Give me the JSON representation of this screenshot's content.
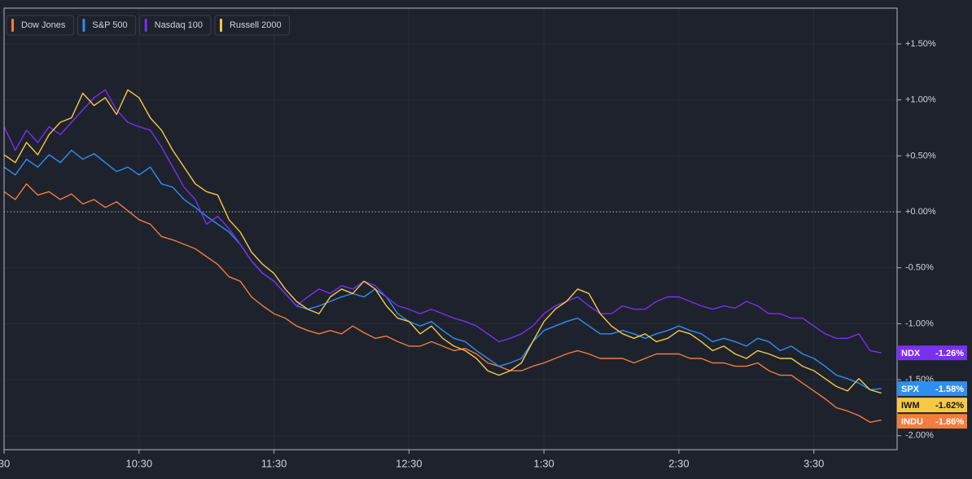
{
  "chart_data": {
    "type": "line",
    "x": [
      "9:30",
      "9:35",
      "9:40",
      "9:45",
      "9:50",
      "9:55",
      "10:00",
      "10:05",
      "10:10",
      "10:15",
      "10:20",
      "10:25",
      "10:30",
      "10:35",
      "10:40",
      "10:45",
      "10:50",
      "10:55",
      "11:00",
      "11:05",
      "11:10",
      "11:15",
      "11:20",
      "11:25",
      "11:30",
      "11:35",
      "11:40",
      "11:45",
      "11:50",
      "11:55",
      "12:00",
      "12:05",
      "12:10",
      "12:15",
      "12:20",
      "12:25",
      "12:30",
      "12:35",
      "12:40",
      "12:45",
      "12:50",
      "12:55",
      "1:00",
      "1:05",
      "1:10",
      "1:15",
      "1:20",
      "1:25",
      "1:30",
      "1:35",
      "1:40",
      "1:45",
      "1:50",
      "1:55",
      "2:00",
      "2:05",
      "2:10",
      "2:15",
      "2:20",
      "2:25",
      "2:30",
      "2:35",
      "2:40",
      "2:45",
      "2:50",
      "2:55",
      "3:00",
      "3:05",
      "3:10",
      "3:15",
      "3:20",
      "3:25",
      "3:30",
      "3:35",
      "3:40",
      "3:45",
      "3:50",
      "3:55",
      "4:00"
    ],
    "xlim": [
      "9:30",
      "4:07"
    ],
    "xticks": [
      {
        "value": "9:30",
        "label": "30"
      },
      "10:30",
      "11:30",
      "12:30",
      "1:30",
      "2:30",
      "3:30"
    ],
    "ylim": [
      -2.125,
      1.82
    ],
    "yticks": [
      {
        "value": 1.5,
        "label": "+1.50%"
      },
      {
        "value": 1.0,
        "label": "+1.00%"
      },
      {
        "value": 0.5,
        "label": "+0.50%"
      },
      {
        "value": 0,
        "label": "+0.00%"
      },
      {
        "value": -0.5,
        "label": "-0.50%"
      },
      {
        "value": -1.0,
        "label": "-1.00%"
      },
      {
        "value": -1.5,
        "label": "-1.50%"
      },
      {
        "value": -2.0,
        "label": "-2.00%"
      }
    ],
    "grid": true,
    "reference_line": 0,
    "legend": "top-left",
    "series": [
      {
        "name": "Dow Jones",
        "symbol": "INDU",
        "last_label": "-1.86%",
        "color": "#f47c3c",
        "values": [
          0.18,
          0.11,
          0.25,
          0.15,
          0.18,
          0.11,
          0.16,
          0.07,
          0.11,
          0.04,
          0.09,
          0.01,
          -0.07,
          -0.11,
          -0.22,
          -0.25,
          -0.29,
          -0.33,
          -0.4,
          -0.47,
          -0.58,
          -0.62,
          -0.76,
          -0.84,
          -0.91,
          -0.95,
          -1.02,
          -1.06,
          -1.09,
          -1.06,
          -1.09,
          -1.02,
          -1.08,
          -1.13,
          -1.11,
          -1.16,
          -1.2,
          -1.2,
          -1.16,
          -1.2,
          -1.24,
          -1.22,
          -1.27,
          -1.35,
          -1.38,
          -1.42,
          -1.42,
          -1.38,
          -1.35,
          -1.31,
          -1.27,
          -1.24,
          -1.27,
          -1.31,
          -1.31,
          -1.31,
          -1.35,
          -1.31,
          -1.27,
          -1.27,
          -1.27,
          -1.31,
          -1.31,
          -1.35,
          -1.35,
          -1.38,
          -1.38,
          -1.35,
          -1.42,
          -1.46,
          -1.46,
          -1.53,
          -1.6,
          -1.67,
          -1.75,
          -1.78,
          -1.82,
          -1.88,
          -1.86
        ]
      },
      {
        "name": "S&P 500",
        "symbol": "SPX",
        "last_label": "-1.58%",
        "color": "#2e8ff0",
        "values": [
          0.4,
          0.33,
          0.47,
          0.4,
          0.51,
          0.44,
          0.55,
          0.47,
          0.52,
          0.44,
          0.36,
          0.4,
          0.33,
          0.4,
          0.25,
          0.22,
          0.11,
          0.04,
          -0.04,
          -0.11,
          -0.18,
          -0.29,
          -0.44,
          -0.55,
          -0.62,
          -0.73,
          -0.84,
          -0.87,
          -0.84,
          -0.8,
          -0.76,
          -0.73,
          -0.76,
          -0.69,
          -0.76,
          -0.91,
          -0.98,
          -1.02,
          -0.98,
          -1.06,
          -1.13,
          -1.16,
          -1.24,
          -1.31,
          -1.38,
          -1.35,
          -1.31,
          -1.16,
          -1.06,
          -1.02,
          -0.98,
          -0.95,
          -1.02,
          -1.09,
          -1.09,
          -1.06,
          -1.09,
          -1.13,
          -1.09,
          -1.06,
          -1.02,
          -1.06,
          -1.09,
          -1.16,
          -1.13,
          -1.16,
          -1.2,
          -1.13,
          -1.16,
          -1.24,
          -1.2,
          -1.27,
          -1.31,
          -1.38,
          -1.46,
          -1.49,
          -1.53,
          -1.59,
          -1.58
        ]
      },
      {
        "name": "Nasdaq 100",
        "symbol": "NDX",
        "last_label": "-1.26%",
        "color": "#7b2ff0",
        "values": [
          0.76,
          0.55,
          0.73,
          0.62,
          0.76,
          0.69,
          0.8,
          0.91,
          1.02,
          1.09,
          0.91,
          0.8,
          0.76,
          0.73,
          0.58,
          0.4,
          0.22,
          0.11,
          -0.11,
          -0.04,
          -0.15,
          -0.29,
          -0.44,
          -0.55,
          -0.62,
          -0.73,
          -0.84,
          -0.76,
          -0.69,
          -0.73,
          -0.66,
          -0.69,
          -0.62,
          -0.66,
          -0.76,
          -0.84,
          -0.87,
          -0.91,
          -0.87,
          -0.91,
          -0.95,
          -0.98,
          -1.02,
          -1.09,
          -1.16,
          -1.13,
          -1.09,
          -1.02,
          -0.91,
          -0.84,
          -0.8,
          -0.76,
          -0.84,
          -0.91,
          -0.91,
          -0.84,
          -0.87,
          -0.87,
          -0.8,
          -0.76,
          -0.76,
          -0.8,
          -0.84,
          -0.87,
          -0.84,
          -0.86,
          -0.8,
          -0.84,
          -0.91,
          -0.91,
          -0.95,
          -0.95,
          -1.02,
          -1.09,
          -1.13,
          -1.13,
          -1.09,
          -1.24,
          -1.26
        ]
      },
      {
        "name": "Russell 2000",
        "symbol": "IWM",
        "last_label": "-1.62%",
        "color": "#f6c945",
        "values": [
          0.51,
          0.44,
          0.62,
          0.51,
          0.69,
          0.8,
          0.84,
          1.06,
          0.95,
          1.02,
          0.87,
          1.09,
          1.02,
          0.84,
          0.73,
          0.55,
          0.4,
          0.25,
          0.18,
          0.15,
          -0.07,
          -0.18,
          -0.36,
          -0.47,
          -0.55,
          -0.69,
          -0.8,
          -0.87,
          -0.91,
          -0.76,
          -0.69,
          -0.73,
          -0.62,
          -0.69,
          -0.84,
          -0.95,
          -0.98,
          -1.09,
          -1.02,
          -1.13,
          -1.2,
          -1.24,
          -1.31,
          -1.42,
          -1.46,
          -1.42,
          -1.35,
          -1.16,
          -0.98,
          -0.87,
          -0.8,
          -0.69,
          -0.73,
          -0.91,
          -1.02,
          -1.09,
          -1.13,
          -1.09,
          -1.16,
          -1.13,
          -1.06,
          -1.09,
          -1.16,
          -1.24,
          -1.2,
          -1.27,
          -1.31,
          -1.24,
          -1.27,
          -1.31,
          -1.31,
          -1.38,
          -1.42,
          -1.49,
          -1.56,
          -1.6,
          -1.49,
          -1.59,
          -1.62
        ]
      }
    ]
  }
}
